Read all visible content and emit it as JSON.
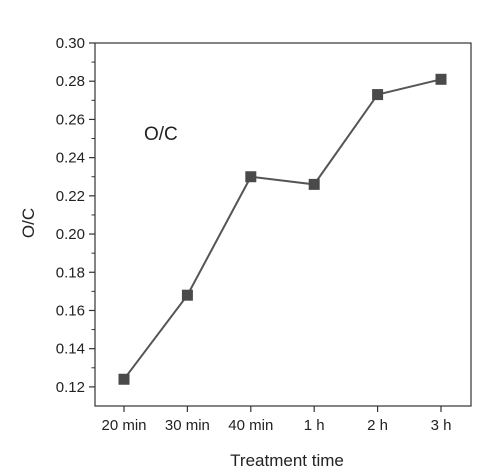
{
  "chart_data": {
    "type": "line",
    "categories": [
      "20 min",
      "30 min",
      "40 min",
      "1 h",
      "2 h",
      "3 h"
    ],
    "series": [
      {
        "values": [
          0.124,
          0.168,
          0.23,
          0.226,
          0.273,
          0.281
        ]
      }
    ],
    "xlabel": "Treatment time",
    "ylabel": "O/C",
    "annotation": "O/C",
    "ylim": [
      0.11,
      0.3
    ],
    "yticks": [
      "0.12",
      "0.14",
      "0.16",
      "0.18",
      "0.20",
      "0.22",
      "0.24",
      "0.26",
      "0.28",
      "0.30"
    ],
    "grid": false,
    "line_color": "#555555",
    "marker": "square",
    "marker_color": "#4a4a4a"
  }
}
